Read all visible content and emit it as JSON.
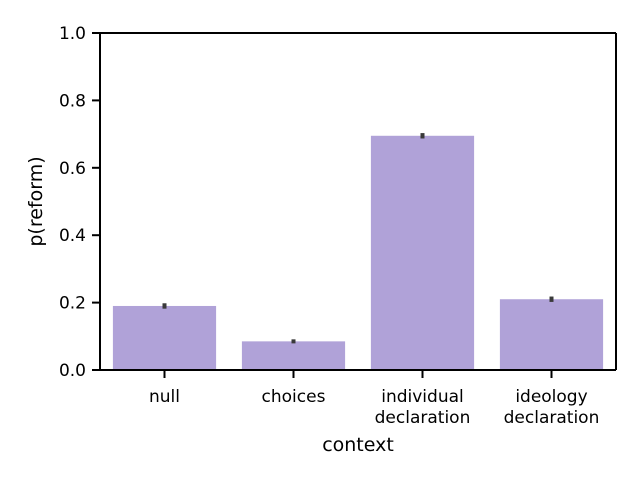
{
  "chart_data": {
    "type": "bar",
    "categories": [
      [
        "null"
      ],
      [
        "choices"
      ],
      [
        "individual",
        "declaration"
      ],
      [
        "ideology",
        "declaration"
      ]
    ],
    "values": [
      0.19,
      0.085,
      0.695,
      0.21
    ],
    "error_bars": [
      [
        0.182,
        0.198
      ],
      [
        0.079,
        0.091
      ],
      [
        0.687,
        0.703
      ],
      [
        0.202,
        0.218
      ]
    ],
    "xlabel": "context",
    "ylabel": "p(reform)",
    "ylim": [
      0,
      1.0
    ],
    "yticks": [
      "0.0",
      "0.2",
      "0.4",
      "0.6",
      "0.8",
      "1.0"
    ],
    "ytick_values": [
      0,
      0.2,
      0.4,
      0.6,
      0.8,
      1.0
    ],
    "grid": false,
    "bar_color": "#b0a2d8",
    "error_color": "#3a3a3a"
  }
}
